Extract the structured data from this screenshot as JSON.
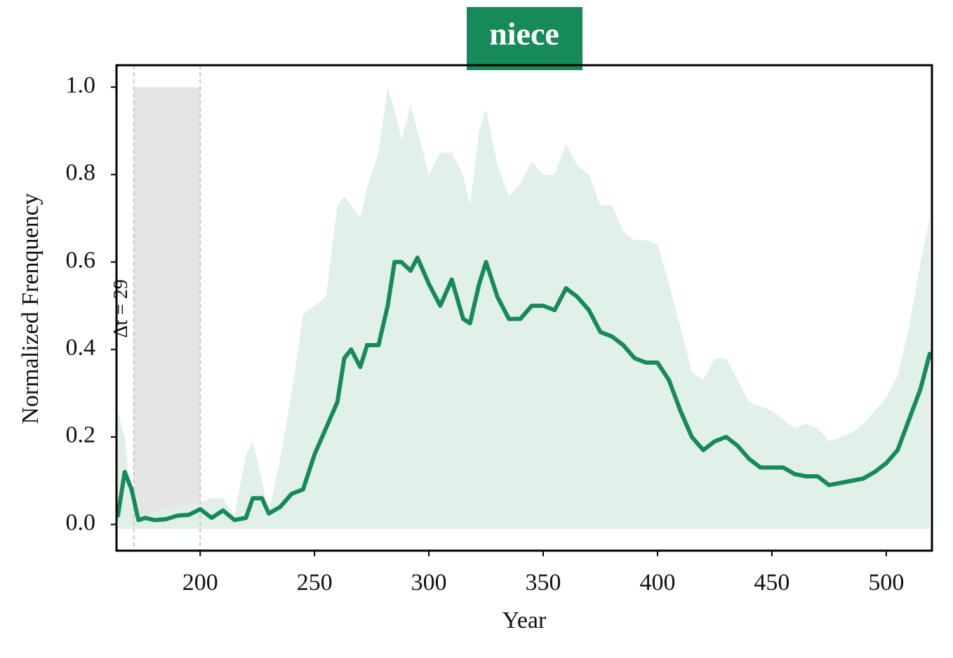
{
  "chart_data": {
    "type": "line",
    "title": "niece",
    "xlabel": "Year",
    "ylabel": "Normalized Frenquency",
    "x": [
      164,
      167,
      170,
      173,
      176,
      180,
      185,
      190,
      195,
      200,
      205,
      210,
      215,
      220,
      223,
      227,
      230,
      235,
      240,
      245,
      250,
      255,
      260,
      263,
      266,
      270,
      273,
      278,
      282,
      285,
      288,
      292,
      295,
      300,
      305,
      310,
      315,
      318,
      322,
      325,
      330,
      335,
      340,
      345,
      350,
      355,
      360,
      365,
      370,
      375,
      380,
      385,
      390,
      395,
      400,
      405,
      410,
      415,
      420,
      425,
      430,
      435,
      440,
      445,
      450,
      455,
      460,
      465,
      470,
      475,
      480,
      485,
      490,
      495,
      500,
      505,
      510,
      515,
      519
    ],
    "series": [
      {
        "color": "#178a5a",
        "values": [
          0.02,
          0.12,
          0.08,
          0.01,
          0.015,
          0.01,
          0.012,
          0.02,
          0.022,
          0.035,
          0.015,
          0.032,
          0.01,
          0.015,
          0.06,
          0.06,
          0.025,
          0.04,
          0.07,
          0.08,
          0.16,
          0.22,
          0.28,
          0.38,
          0.4,
          0.36,
          0.41,
          0.41,
          0.5,
          0.6,
          0.6,
          0.58,
          0.61,
          0.55,
          0.5,
          0.56,
          0.47,
          0.46,
          0.55,
          0.6,
          0.52,
          0.47,
          0.47,
          0.5,
          0.5,
          0.49,
          0.54,
          0.52,
          0.49,
          0.44,
          0.43,
          0.41,
          0.38,
          0.37,
          0.37,
          0.33,
          0.26,
          0.2,
          0.17,
          0.19,
          0.2,
          0.18,
          0.15,
          0.13,
          0.13,
          0.13,
          0.115,
          0.11,
          0.11,
          0.09,
          0.095,
          0.1,
          0.105,
          0.12,
          0.14,
          0.17,
          0.24,
          0.31,
          0.39
        ]
      }
    ],
    "band": {
      "color": "#e0efe9",
      "upper": [
        0.26,
        0.2,
        0.05,
        0.02,
        0.02,
        0.03,
        0.04,
        0.04,
        0.05,
        0.05,
        0.06,
        0.06,
        0.02,
        0.16,
        0.19,
        0.1,
        0.03,
        0.15,
        0.3,
        0.48,
        0.5,
        0.52,
        0.73,
        0.75,
        0.73,
        0.7,
        0.77,
        0.85,
        1.0,
        0.95,
        0.88,
        0.96,
        0.9,
        0.8,
        0.85,
        0.85,
        0.8,
        0.73,
        0.9,
        0.95,
        0.82,
        0.75,
        0.78,
        0.83,
        0.8,
        0.8,
        0.87,
        0.82,
        0.8,
        0.73,
        0.73,
        0.67,
        0.65,
        0.65,
        0.64,
        0.55,
        0.45,
        0.35,
        0.33,
        0.38,
        0.38,
        0.33,
        0.28,
        0.27,
        0.26,
        0.24,
        0.22,
        0.23,
        0.22,
        0.19,
        0.2,
        0.21,
        0.23,
        0.26,
        0.29,
        0.34,
        0.45,
        0.6,
        0.7
      ],
      "lower": [
        -0.01,
        -0.01,
        -0.01,
        -0.01,
        -0.01,
        -0.01,
        -0.01,
        -0.01,
        -0.01,
        -0.01,
        -0.01,
        -0.01,
        -0.01,
        -0.01,
        -0.01,
        -0.01,
        -0.01,
        -0.01,
        -0.01,
        -0.01,
        -0.01,
        -0.01,
        -0.01,
        -0.01,
        -0.01,
        -0.01,
        -0.01,
        -0.01,
        -0.01,
        -0.01,
        -0.01,
        -0.01,
        -0.01,
        -0.01,
        -0.01,
        -0.01,
        -0.01,
        -0.01,
        -0.01,
        -0.01,
        -0.01,
        -0.01,
        -0.01,
        -0.01,
        -0.01,
        -0.01,
        -0.01,
        -0.01,
        -0.01,
        -0.01,
        -0.01,
        -0.01,
        -0.01,
        -0.01,
        -0.01,
        -0.01,
        -0.01,
        -0.01,
        -0.01,
        -0.01,
        -0.01,
        -0.01,
        -0.01,
        -0.01,
        -0.01,
        -0.01,
        -0.01,
        -0.01,
        -0.01,
        -0.01,
        -0.01,
        -0.01,
        -0.01,
        -0.01,
        -0.01,
        -0.01,
        -0.01,
        -0.01,
        -0.01
      ]
    },
    "highlight": {
      "x": [
        171,
        200
      ],
      "y": [
        0,
        1
      ],
      "label": "Δt = 29",
      "color": "#e5e5e5"
    },
    "xlim": [
      163.4,
      520
    ],
    "ylim": [
      -0.06,
      1.05
    ],
    "xticks": [
      200,
      250,
      300,
      350,
      400,
      450,
      500
    ],
    "yticks": [
      {
        "value": 0,
        "label": "0.0"
      },
      {
        "value": 0.2,
        "label": "0.2"
      },
      {
        "value": 0.4,
        "label": "0.4"
      },
      {
        "value": 0.6,
        "label": "0.6"
      },
      {
        "value": 0.8,
        "label": "0.8"
      },
      {
        "value": 1,
        "label": "1.0"
      }
    ]
  }
}
